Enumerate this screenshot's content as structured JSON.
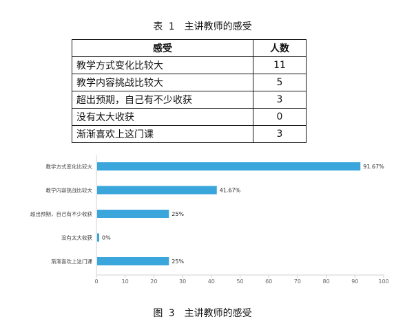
{
  "table": {
    "caption": "表 1　主讲教师的感受",
    "headers": [
      "感受",
      "人数"
    ],
    "rows": [
      {
        "label": "教学方式变化比较大",
        "count": "11"
      },
      {
        "label": "教学内容挑战比较大",
        "count": "5"
      },
      {
        "label": "超出预期，自己有不少收获",
        "count": "3"
      },
      {
        "label": "没有太大收获",
        "count": "0"
      },
      {
        "label": "渐渐喜欢上这门课",
        "count": "3"
      }
    ]
  },
  "chart_data": {
    "type": "bar",
    "orientation": "horizontal",
    "categories": [
      "教学方式变化比较大",
      "教学内容挑战比较大",
      "超出预期，自己有不少收获",
      "没有太大收获",
      "渐渐喜欢上这门课"
    ],
    "values": [
      91.67,
      41.67,
      25,
      0,
      25
    ],
    "data_labels": [
      "91.67%",
      "41.67%",
      "25%",
      "0%",
      "25%"
    ],
    "xlim": [
      0,
      100
    ],
    "xticks": [
      0,
      10,
      20,
      30,
      40,
      50,
      60,
      70,
      80,
      90,
      100
    ],
    "bar_color": "#3aa6dc",
    "grid": false
  },
  "figure": {
    "caption": "图 3　主讲教师的感受"
  }
}
